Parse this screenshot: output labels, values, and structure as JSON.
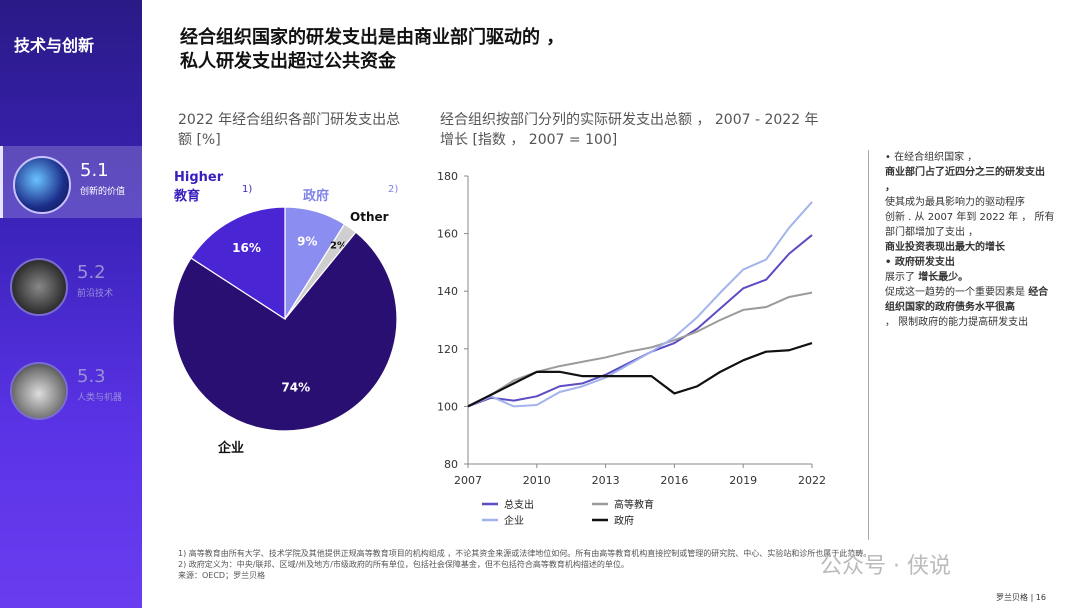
{
  "sidebar": {
    "title": "技术与创新",
    "items": [
      {
        "num": "5.1",
        "label": "创新的价值",
        "active": true
      },
      {
        "num": "5.2",
        "label": "前沿技术",
        "active": false
      },
      {
        "num": "5.3",
        "label": "人类与机器",
        "active": false
      }
    ]
  },
  "header": {
    "title_line1": "经合组织国家的研发支出是由商业部门驱动的 ，",
    "title_line2": "私人研发支出超过公共资金"
  },
  "left_panel": {
    "subtitle": "2022 年经合组织各部门研发支出总额 [%]",
    "higher_label_1": "Higher",
    "higher_label_2": "教育",
    "note_marker_1": "1)",
    "gov_label": "政府",
    "note_marker_2": "2)",
    "other_label": "Other"
  },
  "right_panel": {
    "subtitle": "经合组织按部门分列的实际研发支出总额 ， 2007 - 2022 年增长 [指数 ， 2007 = 100]"
  },
  "colors": {
    "total": "#5b4bc4",
    "higher_ed": "#9b9b9b",
    "business": "#a3b4ec",
    "government": "#111111",
    "pie_business": "#2a0f73",
    "pie_higher": "#4a25d4",
    "pie_gov": "#8b8df0",
    "pie_other": "#cfcfcf"
  },
  "chart_data": [
    {
      "type": "pie",
      "slices": [
        {
          "name": "企业",
          "value": 74,
          "label": "74%"
        },
        {
          "name": "Higher 教育",
          "value": 16,
          "label": "16%"
        },
        {
          "name": "政府",
          "value": 9,
          "label": "9%"
        },
        {
          "name": "Other",
          "value": 2,
          "label": "2%"
        }
      ]
    },
    {
      "type": "line",
      "x": [
        2007,
        2008,
        2009,
        2010,
        2011,
        2012,
        2013,
        2014,
        2015,
        2016,
        2017,
        2018,
        2019,
        2020,
        2021,
        2022
      ],
      "xticks": [
        "2007",
        "2010",
        "2013",
        "2016",
        "2019",
        "2022"
      ],
      "yticks": [
        "80",
        "100",
        "120",
        "140",
        "160",
        "180"
      ],
      "ylim": [
        80,
        180
      ],
      "series": [
        {
          "name": "总支出",
          "values": [
            100,
            103,
            102,
            103.5,
            107,
            108,
            111,
            115,
            119,
            122,
            127,
            134,
            141,
            144,
            153,
            159.5
          ]
        },
        {
          "name": "高等教育",
          "values": [
            100,
            104,
            109,
            112,
            114,
            115.5,
            117,
            119,
            120.5,
            123,
            126,
            130,
            133.5,
            134.5,
            138,
            139.5
          ]
        },
        {
          "name": "企业",
          "values": [
            100,
            103.5,
            100,
            100.5,
            105,
            107,
            110,
            114.5,
            119,
            124,
            131,
            139.5,
            147.5,
            151,
            162,
            171
          ]
        },
        {
          "name": "政府",
          "values": [
            100,
            104,
            108,
            112,
            112,
            110.5,
            110.5,
            110.5,
            110.5,
            104.5,
            107,
            112,
            116,
            119,
            119.5,
            122
          ]
        }
      ]
    }
  ],
  "notes": {
    "bullet1": "• 在经合组织国家 ，",
    "bold1": "商业部门占了近四分之三的研发支出 ，",
    "text1": "使其成为最具影响力的驱动程序",
    "text2": "创新 . 从 2007 年到 2022 年 ， 所有部门都增加了支出 ，",
    "bold2": "商业投资表现出最大的增长",
    "bold3": "• 政府研发支出",
    "text3": "展示了",
    "bold4": "增长最少。",
    "text4": "促成这一趋势的一个重要因素是",
    "bold5": "经合组织国家的政府债务水平很高",
    "text5": "， 限制政府的能力提高研发支出"
  },
  "footnotes": {
    "line1": "1) 高等教育由所有大学、技术学院及其他提供正规高等教育项目的机构组成 ，不论其资金来源或法律地位如何。所有由高等教育机构直接控制或管理的研究院、中心、实验站和诊所也属于此范畴。",
    "line2": "2) 政府定义为：中央/联邦、区域/州及地方/市级政府的所有单位，包括社会保障基金，但不包括符合高等教育机构描述的单位。",
    "line3": "来源：OECD；罗兰贝格"
  },
  "footer": {
    "page": "罗兰贝格 | 16",
    "watermark": "公众号 · 侠说"
  }
}
